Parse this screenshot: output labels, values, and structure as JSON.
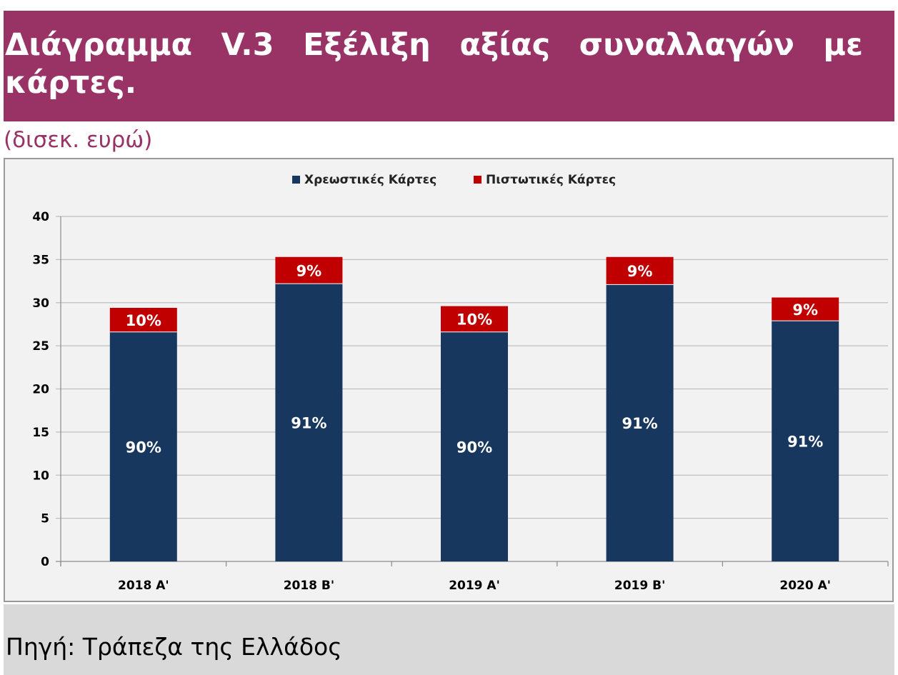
{
  "header": {
    "title": "Διάγραμμα V.3 Εξέλιξη αξίας συναλλαγών με κάρτες.",
    "unit": "(δισεκ. ευρώ)"
  },
  "footer": {
    "source": "Πηγή: Τράπεζα της Ελλάδος"
  },
  "colors": {
    "title_bg": "#993366",
    "debit": "#17375E",
    "credit": "#C00000"
  },
  "chart_data": {
    "type": "bar",
    "stacked": true,
    "categories": [
      "2018 A'",
      "2018 B'",
      "2019 A'",
      "2019 B'",
      "2020 A'"
    ],
    "series": [
      {
        "name": "Χρεωστικές Κάρτες",
        "values": [
          26.6,
          32.2,
          26.6,
          32.1,
          27.9
        ],
        "labels": [
          "90%",
          "91%",
          "90%",
          "91%",
          "91%"
        ]
      },
      {
        "name": "Πιστωτικές Κάρτες",
        "values": [
          2.8,
          3.1,
          3.0,
          3.2,
          2.7
        ],
        "labels": [
          "10%",
          "9%",
          "10%",
          "9%",
          "9%"
        ]
      }
    ],
    "ylim": [
      0,
      40
    ],
    "yticks": [
      0,
      5,
      10,
      15,
      20,
      25,
      30,
      35,
      40
    ],
    "grid": true,
    "legend": "top-center"
  }
}
